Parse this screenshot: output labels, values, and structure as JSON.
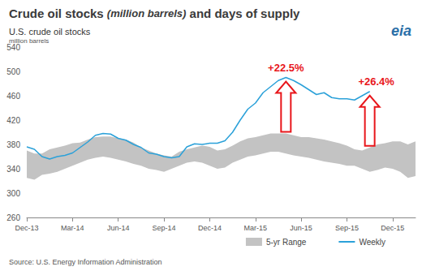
{
  "chart_data": {
    "type": "line",
    "title": "Crude oil stocks (million barrels) and days of supply",
    "subtitle": "U.S. crude oil stocks",
    "ylabel": "million barrels",
    "logo": "eia",
    "source": "Source: U.S. Energy Information Administration",
    "categories": [
      "Dec-13",
      null,
      null,
      null,
      null,
      null,
      "Mar-14",
      null,
      null,
      null,
      null,
      null,
      "Jun-14",
      null,
      null,
      null,
      null,
      null,
      "Sep-14",
      null,
      null,
      null,
      null,
      null,
      "Dec-14",
      null,
      null,
      null,
      null,
      null,
      "Mar-15",
      null,
      null,
      null,
      null,
      null,
      "Jun-15",
      null,
      null,
      null,
      null,
      null,
      "Sep-15",
      null,
      null,
      null,
      null,
      null,
      "Dec-15",
      null,
      null,
      null
    ],
    "series": [
      {
        "name": "5-yr Range",
        "type": "range",
        "color": "#c3c3c3",
        "low": [
          325,
          322,
          330,
          332,
          335,
          340,
          345,
          350,
          355,
          358,
          360,
          358,
          355,
          352,
          348,
          345,
          340,
          338,
          335,
          340,
          345,
          350,
          352,
          350,
          345,
          340,
          342,
          350,
          355,
          360,
          362,
          365,
          368,
          368,
          365,
          362,
          360,
          358,
          355,
          352,
          350,
          348,
          345,
          345,
          340,
          335,
          338,
          342,
          340,
          335,
          325,
          328
        ],
        "high": [
          370,
          365,
          365,
          372,
          375,
          378,
          382,
          383,
          388,
          392,
          393,
          393,
          390,
          388,
          383,
          375,
          370,
          365,
          362,
          360,
          368,
          372,
          375,
          378,
          376,
          370,
          372,
          378,
          385,
          390,
          392,
          395,
          398,
          398,
          398,
          395,
          392,
          392,
          390,
          388,
          385,
          382,
          378,
          372,
          370,
          375,
          380,
          382,
          385,
          385,
          380,
          385
        ]
      },
      {
        "name": "Weekly",
        "type": "line",
        "color": "#2ba1d9",
        "values": [
          376,
          372,
          360,
          356,
          360,
          362,
          366,
          375,
          384,
          395,
          398,
          397,
          390,
          387,
          380,
          375,
          366,
          364,
          360,
          358,
          360,
          376,
          381,
          380,
          382,
          382,
          386,
          400,
          420,
          438,
          448,
          465,
          475,
          485,
          490,
          485,
          478,
          470,
          462,
          465,
          457,
          455,
          455,
          453,
          460,
          467,
          null,
          null,
          null,
          null,
          null,
          null
        ]
      }
    ],
    "annotations": [
      {
        "text": "+22.5%",
        "color": "#e8161b"
      },
      {
        "text": "+26.4%",
        "color": "#e8161b"
      }
    ],
    "ylim": [
      260,
      540
    ],
    "yticks": [
      260,
      300,
      340,
      380,
      420,
      460,
      500,
      540
    ],
    "grid": false,
    "legend": "bottom-right"
  }
}
